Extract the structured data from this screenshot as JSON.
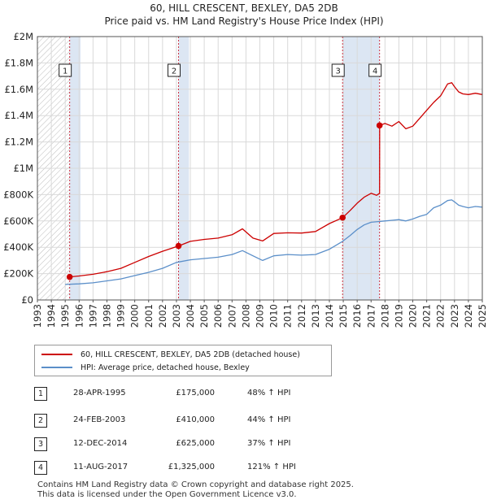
{
  "chart_data": {
    "type": "line",
    "title": "60, HILL CRESCENT, BEXLEY, DA5 2DB",
    "subtitle": "Price paid vs. HM Land Registry's House Price Index (HPI)",
    "xlabel": "",
    "ylabel": "",
    "xlim": [
      1993,
      2025
    ],
    "ylim": [
      0,
      2000000
    ],
    "x_ticks": [
      1993,
      1994,
      1995,
      1996,
      1997,
      1998,
      1999,
      2000,
      2001,
      2002,
      2003,
      2004,
      2005,
      2006,
      2007,
      2008,
      2009,
      2010,
      2011,
      2012,
      2013,
      2014,
      2015,
      2016,
      2017,
      2018,
      2019,
      2020,
      2021,
      2022,
      2023,
      2024,
      2025
    ],
    "y_ticks": [
      {
        "value": 0,
        "label": "£0"
      },
      {
        "value": 200000,
        "label": "£200K"
      },
      {
        "value": 400000,
        "label": "£400K"
      },
      {
        "value": 600000,
        "label": "£600K"
      },
      {
        "value": 800000,
        "label": "£800K"
      },
      {
        "value": 1000000,
        "label": "£1M"
      },
      {
        "value": 1200000,
        "label": "£1.2M"
      },
      {
        "value": 1400000,
        "label": "£1.4M"
      },
      {
        "value": 1600000,
        "label": "£1.6M"
      },
      {
        "value": 1800000,
        "label": "£1.8M"
      },
      {
        "value": 2000000,
        "label": "£2M"
      }
    ],
    "grid": true,
    "colors": {
      "property": "#cc0000",
      "hpi": "#5b8fc9",
      "shade": "#dce6f3",
      "vline": "#cc3344",
      "hatch": "#bbbbbb",
      "grid": "#d9d9d9"
    },
    "series": [
      {
        "name": "60, HILL CRESCENT, BEXLEY, DA5 2DB (detached house)",
        "key": "property",
        "x": [
          1995.32,
          1996.0,
          1997.0,
          1998.0,
          1999.0,
          2000.0,
          2001.0,
          2002.0,
          2003.15,
          2004.0,
          2005.0,
          2006.0,
          2007.0,
          2007.75,
          2008.5,
          2009.2,
          2010.0,
          2011.0,
          2012.0,
          2013.0,
          2014.0,
          2014.95,
          2015.5,
          2016.0,
          2016.5,
          2017.0,
          2017.4,
          2017.61,
          2017.62,
          2018.0,
          2018.5,
          2019.0,
          2019.5,
          2020.0,
          2020.5,
          2021.0,
          2021.5,
          2022.0,
          2022.5,
          2022.8,
          2023.0,
          2023.3,
          2023.6,
          2024.0,
          2024.5,
          2025.0
        ],
        "values": [
          175000,
          182000,
          195000,
          215000,
          240000,
          285000,
          330000,
          370000,
          410000,
          445000,
          460000,
          470000,
          495000,
          540000,
          470000,
          448000,
          505000,
          510000,
          508000,
          520000,
          580000,
          625000,
          680000,
          735000,
          780000,
          810000,
          795000,
          810000,
          1325000,
          1340000,
          1320000,
          1355000,
          1300000,
          1320000,
          1380000,
          1440000,
          1500000,
          1550000,
          1640000,
          1650000,
          1620000,
          1580000,
          1565000,
          1560000,
          1570000,
          1560000
        ]
      },
      {
        "name": "HPI: Average price, detached house, Bexley",
        "key": "hpi",
        "x": [
          1995.0,
          1996.0,
          1997.0,
          1998.0,
          1999.0,
          2000.0,
          2001.0,
          2002.0,
          2003.0,
          2004.0,
          2005.0,
          2006.0,
          2007.0,
          2007.75,
          2008.5,
          2009.2,
          2010.0,
          2011.0,
          2012.0,
          2013.0,
          2014.0,
          2014.95,
          2015.5,
          2016.0,
          2016.5,
          2017.0,
          2017.5,
          2018.0,
          2018.5,
          2019.0,
          2019.5,
          2020.0,
          2020.5,
          2021.0,
          2021.5,
          2022.0,
          2022.5,
          2022.8,
          2023.0,
          2023.3,
          2023.6,
          2024.0,
          2024.5,
          2025.0
        ],
        "values": [
          118000,
          122000,
          130000,
          145000,
          160000,
          185000,
          210000,
          240000,
          285000,
          305000,
          315000,
          325000,
          345000,
          375000,
          335000,
          300000,
          335000,
          345000,
          340000,
          345000,
          385000,
          445000,
          490000,
          535000,
          570000,
          590000,
          595000,
          600000,
          605000,
          610000,
          600000,
          615000,
          635000,
          650000,
          700000,
          720000,
          755000,
          760000,
          745000,
          720000,
          710000,
          700000,
          710000,
          705000
        ]
      }
    ],
    "annotations": [
      {
        "id": "1",
        "x": 1995.32,
        "value": 175000
      },
      {
        "id": "2",
        "x": 2003.15,
        "value": 410000
      },
      {
        "id": "3",
        "x": 2014.95,
        "value": 625000
      },
      {
        "id": "4",
        "x": 2017.61,
        "value": 1325000
      }
    ],
    "shaded_regions": [
      {
        "from": 1993.0,
        "to": 1995.32,
        "style": "hatch"
      },
      {
        "from": 1995.32,
        "to": 1996.1,
        "style": "fill"
      },
      {
        "from": 2003.15,
        "to": 2003.9,
        "style": "fill"
      },
      {
        "from": 2014.95,
        "to": 2017.61,
        "style": "fill"
      }
    ]
  },
  "legend": {
    "property_label": "60, HILL CRESCENT, BEXLEY, DA5 2DB (detached house)",
    "hpi_label": "HPI: Average price, detached house, Bexley"
  },
  "sales": [
    {
      "num": "1",
      "date": "28-APR-1995",
      "price": "£175,000",
      "hpi": "48% ↑ HPI"
    },
    {
      "num": "2",
      "date": "24-FEB-2003",
      "price": "£410,000",
      "hpi": "44% ↑ HPI"
    },
    {
      "num": "3",
      "date": "12-DEC-2014",
      "price": "£625,000",
      "hpi": "37% ↑ HPI"
    },
    {
      "num": "4",
      "date": "11-AUG-2017",
      "price": "£1,325,000",
      "hpi": "121% ↑ HPI"
    }
  ],
  "footer": {
    "line1": "Contains HM Land Registry data © Crown copyright and database right 2025.",
    "line2": "This data is licensed under the Open Government Licence v3.0."
  }
}
